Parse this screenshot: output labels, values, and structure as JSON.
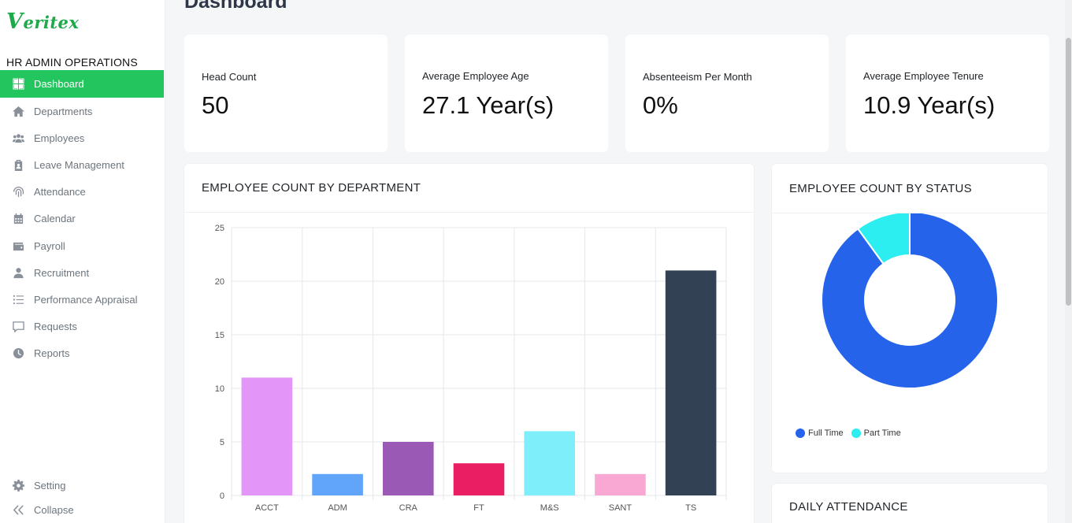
{
  "sidebar": {
    "logo": "Veritex",
    "section_title": "HR ADMIN OPERATIONS",
    "items": [
      {
        "label": "Dashboard",
        "icon": "grid-icon",
        "active": true
      },
      {
        "label": "Departments",
        "icon": "home-icon"
      },
      {
        "label": "Employees",
        "icon": "users-icon"
      },
      {
        "label": "Leave Management",
        "icon": "clipboard-icon"
      },
      {
        "label": "Attendance",
        "icon": "fingerprint-icon"
      },
      {
        "label": "Calendar",
        "icon": "calendar-icon"
      },
      {
        "label": "Payroll",
        "icon": "wallet-icon"
      },
      {
        "label": "Recruitment",
        "icon": "user-icon"
      },
      {
        "label": "Performance Appraisal",
        "icon": "list-icon"
      },
      {
        "label": "Requests",
        "icon": "chat-icon"
      },
      {
        "label": "Reports",
        "icon": "clock-icon"
      }
    ],
    "bottom": [
      {
        "label": "Setting",
        "icon": "gear-icon"
      },
      {
        "label": "Collapse",
        "icon": "double-chevron-left-icon"
      }
    ]
  },
  "page_title": "Dashboard",
  "stats": [
    {
      "label": "Head Count",
      "value": "50"
    },
    {
      "label": "Average Employee Age",
      "value": "27.1 Year(s)"
    },
    {
      "label": "Absenteeism Per Month",
      "value": "0%"
    },
    {
      "label": "Average Employee Tenure",
      "value": "10.9 Year(s)"
    }
  ],
  "cards": {
    "department_title": "EMPLOYEE COUNT BY DEPARTMENT",
    "status_title": "EMPLOYEE COUNT BY STATUS",
    "attendance_title": "DAILY ATTENDANCE"
  },
  "colors": {
    "accent": "#22c55e",
    "logo": "#1ea94a"
  },
  "chart_data": [
    {
      "type": "bar",
      "categories": [
        "ACCT",
        "ADM",
        "CRA",
        "FT",
        "M&S",
        "SANT",
        "TS"
      ],
      "values": [
        11,
        2,
        5,
        3,
        6,
        2,
        21
      ],
      "colors": [
        "#e396f8",
        "#60a5fa",
        "#9b59b6",
        "#e91e63",
        "#7eeefb",
        "#f9a8d4",
        "#334155"
      ],
      "ylim": [
        0,
        25
      ],
      "yticks": [
        0,
        5,
        10,
        15,
        20,
        25
      ],
      "grid": true
    },
    {
      "type": "pie",
      "donut": true,
      "labels": [
        "Full Time",
        "Part Time"
      ],
      "values": [
        45,
        5
      ],
      "colors": [
        "#2563eb",
        "#2ceef0"
      ],
      "legend": "bottom-left"
    }
  ]
}
